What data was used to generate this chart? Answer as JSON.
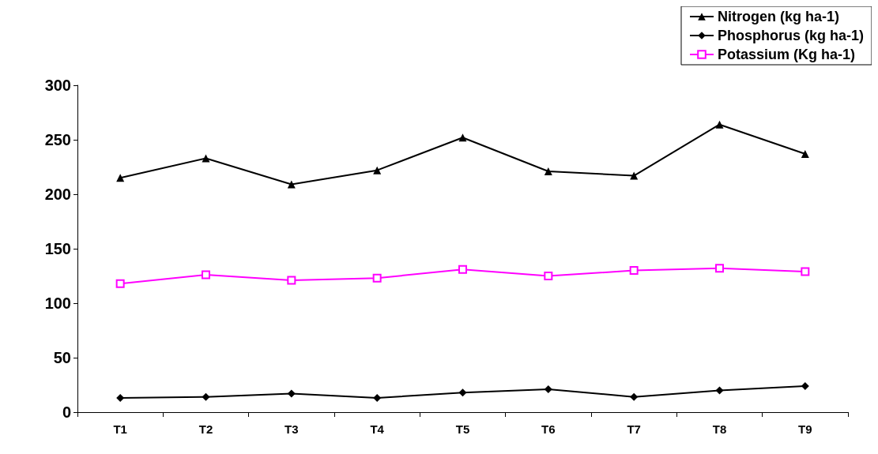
{
  "chart_data": {
    "type": "line",
    "categories": [
      "T1",
      "T2",
      "T3",
      "T4",
      "T5",
      "T6",
      "T7",
      "T8",
      "T9"
    ],
    "series": [
      {
        "name": "Nitrogen (kg ha-1)",
        "color": "#000000",
        "marker": "triangle",
        "values": [
          215,
          233,
          209,
          222,
          252,
          221,
          217,
          264,
          237
        ]
      },
      {
        "name": "Phosphorus (kg ha-1)",
        "color": "#000000",
        "marker": "diamond",
        "values": [
          13,
          14,
          17,
          13,
          18,
          21,
          14,
          20,
          24
        ]
      },
      {
        "name": "Potassium (Kg ha-1)",
        "color": "#ff00ff",
        "marker": "square",
        "values": [
          118,
          126,
          121,
          123,
          131,
          125,
          130,
          132,
          129
        ]
      }
    ],
    "ylim": [
      0,
      300
    ],
    "yticks": [
      0,
      50,
      100,
      150,
      200,
      250,
      300
    ],
    "grid": false,
    "legend": "top right"
  }
}
